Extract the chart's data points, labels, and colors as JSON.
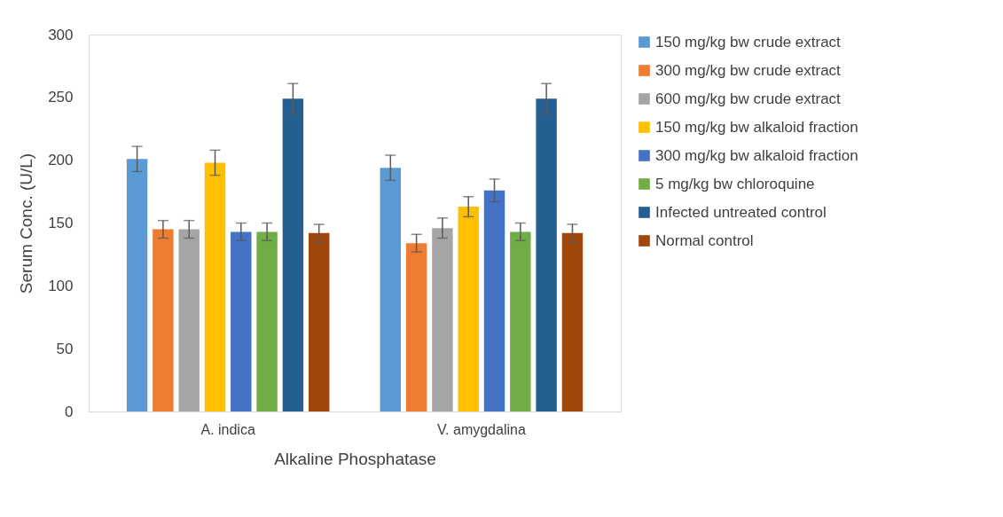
{
  "chart_data": {
    "type": "bar",
    "xlabel": "Alkaline Phosphatase",
    "ylabel": "Serum Conc. (U/L)",
    "categories": [
      "A. indica",
      "V. amygdalina"
    ],
    "series": [
      {
        "name": "150 mg/kg bw crude extract",
        "color": "#5b9bd5",
        "values": [
          201,
          194
        ],
        "errors": [
          10,
          10
        ]
      },
      {
        "name": "300 mg/kg bw crude extract",
        "color": "#ed7d31",
        "values": [
          145,
          134
        ],
        "errors": [
          7,
          7
        ]
      },
      {
        "name": "600 mg/kg bw crude extract",
        "color": "#a5a5a5",
        "values": [
          145,
          146
        ],
        "errors": [
          7,
          8
        ]
      },
      {
        "name": "150 mg/kg bw alkaloid fraction",
        "color": "#ffc000",
        "values": [
          198,
          163
        ],
        "errors": [
          10,
          8
        ]
      },
      {
        "name": "300 mg/kg bw alkaloid fraction",
        "color": "#4472c4",
        "values": [
          143,
          176
        ],
        "errors": [
          7,
          9
        ]
      },
      {
        "name": "5 mg/kg bw chloroquine",
        "color": "#70ad47",
        "values": [
          143,
          143
        ],
        "errors": [
          7,
          7
        ]
      },
      {
        "name": "Infected untreated control",
        "color": "#255e91",
        "values": [
          249,
          249
        ],
        "errors": [
          12,
          12
        ]
      },
      {
        "name": "Normal control",
        "color": "#9e480e",
        "values": [
          142,
          142
        ],
        "errors": [
          7,
          7
        ]
      }
    ],
    "ylim": [
      0,
      300
    ],
    "yticks": [
      0,
      50,
      100,
      150,
      200,
      250,
      300
    ],
    "grid": false,
    "legend": "right"
  }
}
